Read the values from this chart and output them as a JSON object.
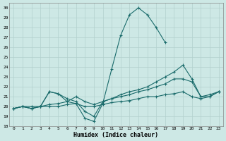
{
  "xlabel": "Humidex (Indice chaleur)",
  "xlim": [
    -0.5,
    23.5
  ],
  "ylim": [
    18,
    30.5
  ],
  "yticks": [
    18,
    19,
    20,
    21,
    22,
    23,
    24,
    25,
    26,
    27,
    28,
    29,
    30
  ],
  "xticks": [
    0,
    1,
    2,
    3,
    4,
    5,
    6,
    7,
    8,
    9,
    10,
    11,
    12,
    13,
    14,
    15,
    16,
    17,
    18,
    19,
    20,
    21,
    22,
    23
  ],
  "bg_color": "#cde8e5",
  "grid_color": "#b2d0cd",
  "line_color": "#1a6b6b",
  "series": [
    {
      "x": [
        0,
        1,
        2,
        3,
        4,
        5,
        6,
        7,
        8,
        9,
        10,
        11,
        12,
        13,
        14,
        15,
        16,
        17
      ],
      "y": [
        19.8,
        20.0,
        20.0,
        20.0,
        21.5,
        21.3,
        20.5,
        20.3,
        18.8,
        18.5,
        20.3,
        23.8,
        27.2,
        29.3,
        30.0,
        29.3,
        28.0,
        26.5
      ]
    },
    {
      "x": [
        0,
        1,
        2,
        3,
        4,
        5,
        6,
        7,
        8,
        9,
        10,
        11,
        12,
        13,
        14,
        15,
        16,
        17,
        18,
        19,
        20,
        21,
        22,
        23
      ],
      "y": [
        19.8,
        20.0,
        19.8,
        20.0,
        20.2,
        20.3,
        20.5,
        21.0,
        20.5,
        20.2,
        20.5,
        20.8,
        21.2,
        21.5,
        21.7,
        22.0,
        22.5,
        23.0,
        23.5,
        24.2,
        22.8,
        21.0,
        21.2,
        21.5
      ]
    },
    {
      "x": [
        0,
        1,
        2,
        3,
        4,
        5,
        6,
        7,
        8,
        9,
        10,
        11,
        12,
        13,
        14,
        15,
        16,
        17,
        18,
        19,
        20,
        21,
        22,
        23
      ],
      "y": [
        19.8,
        20.0,
        19.8,
        20.0,
        20.0,
        20.0,
        20.2,
        20.3,
        20.0,
        20.0,
        20.2,
        20.4,
        20.5,
        20.6,
        20.8,
        21.0,
        21.0,
        21.2,
        21.3,
        21.5,
        21.0,
        20.8,
        21.0,
        21.5
      ]
    },
    {
      "x": [
        0,
        1,
        2,
        3,
        4,
        5,
        6,
        7,
        8,
        9,
        10,
        11,
        12,
        13,
        14,
        15,
        16,
        17,
        18,
        19,
        20,
        21,
        22,
        23
      ],
      "y": [
        19.8,
        20.0,
        19.8,
        20.0,
        21.5,
        21.3,
        20.8,
        20.5,
        19.5,
        19.0,
        20.5,
        20.8,
        21.0,
        21.2,
        21.5,
        21.7,
        22.0,
        22.3,
        22.8,
        22.8,
        22.5,
        21.0,
        21.0,
        21.5
      ]
    }
  ]
}
